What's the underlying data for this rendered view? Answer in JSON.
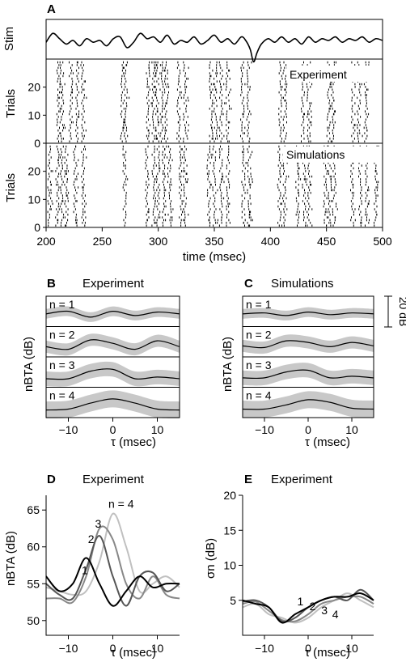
{
  "chart_data": [
    {
      "panel": "A",
      "type": "scatter",
      "sublabels": {
        "stim": "Stim",
        "experiment": "Experiment",
        "simulations": "Simulations"
      },
      "xlabel": "time (msec)",
      "ylabel": "Trials",
      "xlim": [
        200,
        500
      ],
      "xticks": [
        200,
        250,
        300,
        350,
        400,
        450,
        500
      ],
      "ylim": [
        0,
        30
      ],
      "yticks": [
        0,
        10,
        20
      ],
      "stim_trace": [
        [
          200,
          0.45
        ],
        [
          206,
          0.7
        ],
        [
          212,
          0.55
        ],
        [
          218,
          0.4
        ],
        [
          224,
          0.5
        ],
        [
          230,
          0.35
        ],
        [
          236,
          0.55
        ],
        [
          242,
          0.45
        ],
        [
          248,
          0.5
        ],
        [
          254,
          0.35
        ],
        [
          260,
          0.55
        ],
        [
          266,
          0.6
        ],
        [
          272,
          0.3
        ],
        [
          278,
          0.45
        ],
        [
          284,
          0.7
        ],
        [
          290,
          0.55
        ],
        [
          296,
          0.6
        ],
        [
          302,
          0.45
        ],
        [
          308,
          0.65
        ],
        [
          314,
          0.4
        ],
        [
          320,
          0.5
        ],
        [
          326,
          0.45
        ],
        [
          332,
          0.6
        ],
        [
          338,
          0.4
        ],
        [
          344,
          0.5
        ],
        [
          350,
          0.65
        ],
        [
          356,
          0.45
        ],
        [
          362,
          0.55
        ],
        [
          368,
          0.4
        ],
        [
          374,
          0.6
        ],
        [
          378,
          0.5
        ],
        [
          382,
          0.25
        ],
        [
          385,
          -0.1
        ],
        [
          388,
          0.15
        ],
        [
          392,
          0.4
        ],
        [
          398,
          0.55
        ],
        [
          404,
          0.45
        ],
        [
          410,
          0.6
        ],
        [
          416,
          0.45
        ],
        [
          422,
          0.55
        ],
        [
          428,
          0.4
        ],
        [
          434,
          0.6
        ],
        [
          440,
          0.45
        ],
        [
          446,
          0.55
        ],
        [
          452,
          0.5
        ],
        [
          458,
          0.6
        ],
        [
          464,
          0.45
        ],
        [
          470,
          0.55
        ],
        [
          476,
          0.5
        ],
        [
          482,
          0.6
        ],
        [
          488,
          0.45
        ],
        [
          494,
          0.55
        ],
        [
          500,
          0.5
        ]
      ],
      "spike_bursts_msec": {
        "experiment": [
          211,
          214,
          222,
          228,
          233,
          268,
          271,
          291,
          296,
          299,
          303,
          307,
          318,
          324,
          347,
          351,
          356,
          362,
          375,
          380,
          409,
          413,
          429,
          434,
          452,
          456,
          474,
          479,
          485
        ],
        "simulations": [
          203,
          210,
          214,
          218,
          226,
          233,
          270,
          290,
          296,
          300,
          305,
          310,
          320,
          324,
          345,
          350,
          356,
          362,
          376,
          381,
          408,
          413,
          424,
          430,
          434,
          449,
          453,
          457,
          473,
          480,
          486,
          494
        ]
      }
    },
    {
      "panel": "B",
      "type": "line",
      "title": "Experiment",
      "xlabel": "τ (msec)",
      "ylabel": "nBTA (dB)",
      "xlim": [
        -15,
        15
      ],
      "xticks": [
        -10,
        0,
        10
      ],
      "series": [
        {
          "name": "n = 1",
          "x": [
            -15,
            -10,
            -5,
            0,
            5,
            10,
            15
          ],
          "y": [
            0,
            0.3,
            -0.4,
            0.3,
            -0.2,
            0.2,
            0
          ]
        },
        {
          "name": "n = 2",
          "x": [
            -15,
            -10,
            -5,
            0,
            5,
            10,
            15
          ],
          "y": [
            -0.3,
            -0.6,
            0.5,
            0.1,
            -0.6,
            0.4,
            -0.3
          ]
        },
        {
          "name": "n = 3",
          "x": [
            -15,
            -10,
            -5,
            0,
            5,
            10,
            15
          ],
          "y": [
            -0.5,
            -0.5,
            0.4,
            0.6,
            -0.5,
            -0.3,
            -0.5
          ]
        },
        {
          "name": "n = 4",
          "x": [
            -15,
            -10,
            -5,
            0,
            5,
            10,
            15
          ],
          "y": [
            -0.6,
            -0.5,
            0.2,
            0.7,
            0.2,
            -0.5,
            -0.6
          ]
        }
      ],
      "scale_bar": "20 dB"
    },
    {
      "panel": "C",
      "type": "line",
      "title": "Simulations",
      "xlabel": "τ (msec)",
      "ylabel": "nBTA (dB)",
      "xlim": [
        -15,
        15
      ],
      "xticks": [
        -10,
        0,
        10
      ],
      "series": [
        {
          "name": "n = 1",
          "x": [
            -15,
            -10,
            -5,
            0,
            5,
            10,
            15
          ],
          "y": [
            0,
            0.1,
            -0.2,
            0.2,
            -0.1,
            0.1,
            0
          ]
        },
        {
          "name": "n = 2",
          "x": [
            -15,
            -10,
            -5,
            0,
            5,
            10,
            15
          ],
          "y": [
            -0.2,
            -0.4,
            0.4,
            0.2,
            -0.3,
            0.2,
            -0.2
          ]
        },
        {
          "name": "n = 3",
          "x": [
            -15,
            -10,
            -5,
            0,
            5,
            10,
            15
          ],
          "y": [
            -0.4,
            -0.4,
            0.3,
            0.5,
            -0.4,
            -0.2,
            -0.4
          ]
        },
        {
          "name": "n = 4",
          "x": [
            -15,
            -10,
            -5,
            0,
            5,
            10,
            15
          ],
          "y": [
            -0.5,
            -0.5,
            0.0,
            0.6,
            0.3,
            -0.4,
            -0.5
          ]
        }
      ],
      "scale_bar": "20 dB"
    },
    {
      "panel": "D",
      "type": "line",
      "title": "Experiment",
      "xlabel": "τ (msec)",
      "ylabel": "nBTA (dB)",
      "xlim": [
        -15,
        15
      ],
      "ylim": [
        48,
        67
      ],
      "xticks": [
        -10,
        0,
        10
      ],
      "yticks": [
        50,
        55,
        60,
        65
      ],
      "series": [
        {
          "name": "1",
          "color": "#000000",
          "x": [
            -15,
            -12,
            -9,
            -6,
            -3,
            0,
            3,
            6,
            9,
            12,
            15
          ],
          "y": [
            56,
            54,
            55,
            58.5,
            55,
            52,
            54,
            56,
            54.5,
            55,
            55
          ]
        },
        {
          "name": "2",
          "color": "#555555",
          "x": [
            -15,
            -12,
            -9,
            -6,
            -3,
            0,
            3,
            6,
            9,
            12,
            15
          ],
          "y": [
            55,
            53.5,
            53,
            57,
            61.5,
            56,
            52,
            56,
            56.5,
            54,
            55
          ]
        },
        {
          "name": "3",
          "color": "#888888",
          "x": [
            -15,
            -12,
            -9,
            -6,
            -3,
            0,
            3,
            6,
            9,
            12,
            15
          ],
          "y": [
            53,
            53,
            52.5,
            56,
            62.5,
            61,
            55,
            53,
            56,
            53.5,
            53
          ]
        },
        {
          "name": "n = 4",
          "color": "#c0c0c0",
          "x": [
            -15,
            -12,
            -9,
            -6,
            -3,
            0,
            3,
            6,
            9,
            12,
            15
          ],
          "y": [
            54.5,
            54,
            53.5,
            54,
            58,
            64.5,
            60,
            54,
            55,
            56,
            54.5
          ]
        }
      ]
    },
    {
      "panel": "E",
      "type": "line",
      "title": "Experiment",
      "xlabel": "τ (msec)",
      "ylabel": "σn (dB)",
      "xlim": [
        -15,
        15
      ],
      "ylim": [
        0,
        20
      ],
      "xticks": [
        -10,
        0,
        10
      ],
      "yticks": [
        5,
        10,
        15,
        20
      ],
      "series": [
        {
          "name": "1",
          "color": "#000000",
          "x": [
            -15,
            -12,
            -9,
            -6,
            -3,
            0,
            3,
            6,
            9,
            12,
            15
          ],
          "y": [
            5,
            4.5,
            4,
            1.8,
            3,
            4,
            5,
            5.5,
            5.5,
            6,
            5
          ]
        },
        {
          "name": "2",
          "color": "#555555",
          "x": [
            -15,
            -12,
            -9,
            -6,
            -3,
            0,
            3,
            6,
            9,
            12,
            15
          ],
          "y": [
            4.8,
            5,
            4,
            2,
            2.5,
            4,
            5,
            5.5,
            5,
            6.5,
            5
          ]
        },
        {
          "name": "3",
          "color": "#888888",
          "x": [
            -15,
            -12,
            -9,
            -6,
            -3,
            0,
            3,
            6,
            9,
            12,
            15
          ],
          "y": [
            4.5,
            4.8,
            3.5,
            2.2,
            2,
            3,
            4.5,
            5,
            5.5,
            5.5,
            4.5
          ]
        },
        {
          "name": "4",
          "color": "#c0c0c0",
          "x": [
            -15,
            -12,
            -9,
            -6,
            -3,
            0,
            3,
            6,
            9,
            12,
            15
          ],
          "y": [
            4,
            4.5,
            3,
            2.5,
            1.8,
            2.5,
            4,
            5,
            6,
            5,
            4
          ]
        }
      ]
    }
  ],
  "labels": {
    "A": "A",
    "B": "B",
    "C": "C",
    "D": "D",
    "E": "E"
  }
}
